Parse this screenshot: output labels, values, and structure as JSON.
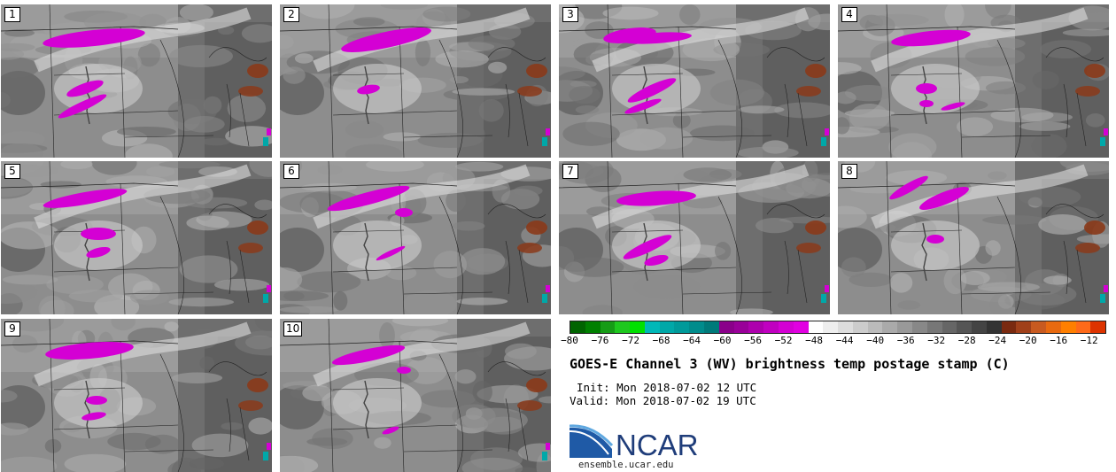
{
  "panels": [
    {
      "label": "1"
    },
    {
      "label": "2"
    },
    {
      "label": "3"
    },
    {
      "label": "4"
    },
    {
      "label": "5"
    },
    {
      "label": "6"
    },
    {
      "label": "7"
    },
    {
      "label": "8"
    },
    {
      "label": "9"
    },
    {
      "label": "10"
    }
  ],
  "colorbar": {
    "tick_labels": [
      "−80",
      "−76",
      "−72",
      "−68",
      "−64",
      "−60",
      "−56",
      "−52",
      "−48",
      "−44",
      "−40",
      "−36",
      "−32",
      "−28",
      "−24",
      "−20",
      "−16",
      "−12"
    ],
    "tick_values": [
      -80,
      -76,
      -72,
      -68,
      -64,
      -60,
      -56,
      -52,
      -48,
      -44,
      -40,
      -36,
      -32,
      -28,
      -24,
      -20,
      -16,
      -12
    ],
    "range": [
      -80,
      -10
    ],
    "step": 2,
    "colors": [
      "#006400",
      "#008000",
      "#169c16",
      "#1ec81e",
      "#00e000",
      "#00b8b8",
      "#00a8a8",
      "#009a9a",
      "#008c8c",
      "#007a7a",
      "#8a008a",
      "#990099",
      "#ad00ad",
      "#c000c0",
      "#d400d4",
      "#e100e1",
      "#ffffff",
      "#eeeeee",
      "#dddddd",
      "#cccccc",
      "#bbbbbb",
      "#aaaaaa",
      "#999999",
      "#888888",
      "#777777",
      "#666666",
      "#555555",
      "#444444",
      "#333333",
      "#7a2a10",
      "#a0401a",
      "#c85a20",
      "#e86a10",
      "#ff7f00",
      "#ff6a1a",
      "#dd3300"
    ]
  },
  "title": "GOES-E Channel 3 (WV) brightness temp postage stamp (C)",
  "init_text": "Init: Mon 2018-07-02 12 UTC",
  "valid_text": "Valid: Mon 2018-07-02 19 UTC",
  "logo_text": "NCAR",
  "website": "ensemble.ucar.edu"
}
